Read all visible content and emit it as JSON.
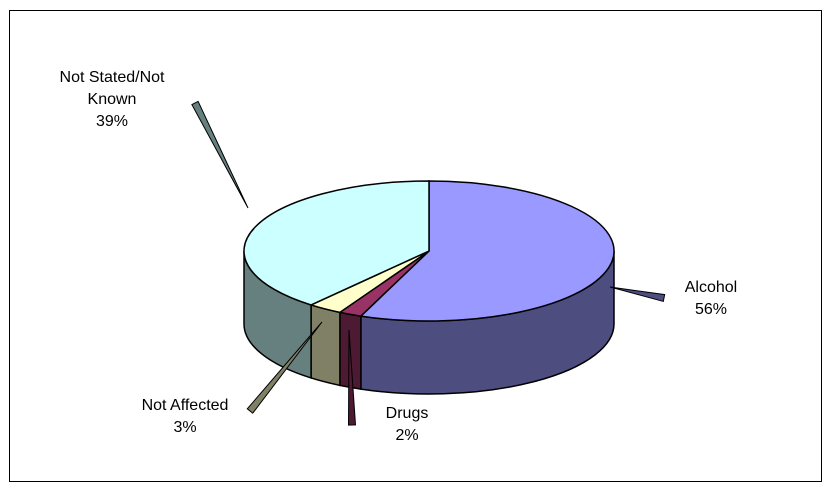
{
  "chart_data": {
    "type": "pie",
    "title": "",
    "three_d": true,
    "legend": "none",
    "slices": [
      {
        "name": "Alcohol",
        "value": 56,
        "label": "56%",
        "top_color": "#9999ff",
        "side_color": "#4d4d80"
      },
      {
        "name": "Drugs",
        "value": 2,
        "label": "2%",
        "top_color": "#993366",
        "side_color": "#4d1a33"
      },
      {
        "name": "Not Affected",
        "value": 3,
        "label": "3%",
        "top_color": "#ffffcc",
        "side_color": "#808066"
      },
      {
        "name": "Not Stated/Not Known",
        "name_lines": [
          "Not Stated/Not",
          "Known"
        ],
        "value": 39,
        "label": "39%",
        "top_color": "#ccffff",
        "side_color": "#668080"
      }
    ]
  }
}
